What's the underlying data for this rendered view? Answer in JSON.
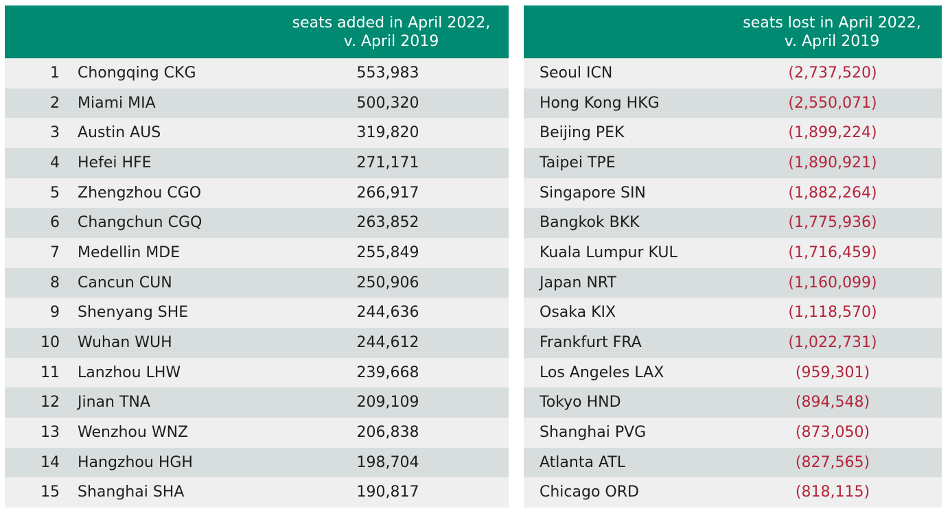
{
  "added": {
    "header_line1": "seats added in April 2022,",
    "header_line2": "v. April 2019",
    "rows": [
      {
        "rank": "1",
        "airport": "Chongqing CKG",
        "value": "553,983"
      },
      {
        "rank": "2",
        "airport": "Miami MIA",
        "value": "500,320"
      },
      {
        "rank": "3",
        "airport": "Austin AUS",
        "value": "319,820"
      },
      {
        "rank": "4",
        "airport": "Hefei HFE",
        "value": "271,171"
      },
      {
        "rank": "5",
        "airport": "Zhengzhou CGO",
        "value": "266,917"
      },
      {
        "rank": "6",
        "airport": "Changchun CGQ",
        "value": "263,852"
      },
      {
        "rank": "7",
        "airport": "Medellin MDE",
        "value": "255,849"
      },
      {
        "rank": "8",
        "airport": "Cancun CUN",
        "value": "250,906"
      },
      {
        "rank": "9",
        "airport": "Shenyang SHE",
        "value": "244,636"
      },
      {
        "rank": "10",
        "airport": "Wuhan WUH",
        "value": "244,612"
      },
      {
        "rank": "11",
        "airport": "Lanzhou LHW",
        "value": "239,668"
      },
      {
        "rank": "12",
        "airport": "Jinan TNA",
        "value": "209,109"
      },
      {
        "rank": "13",
        "airport": "Wenzhou WNZ",
        "value": "206,838"
      },
      {
        "rank": "14",
        "airport": "Hangzhou HGH",
        "value": "198,704"
      },
      {
        "rank": "15",
        "airport": "Shanghai SHA",
        "value": "190,817"
      }
    ]
  },
  "lost": {
    "header_line1": "seats lost in April 2022,",
    "header_line2": "v. April 2019",
    "rows": [
      {
        "airport": "Seoul ICN",
        "value": "(2,737,520)"
      },
      {
        "airport": "Hong Kong HKG",
        "value": "(2,550,071)"
      },
      {
        "airport": "Beijing PEK",
        "value": "(1,899,224)"
      },
      {
        "airport": "Taipei TPE",
        "value": "(1,890,921)"
      },
      {
        "airport": "Singapore SIN",
        "value": "(1,882,264)"
      },
      {
        "airport": "Bangkok BKK",
        "value": "(1,775,936)"
      },
      {
        "airport": "Kuala Lumpur KUL",
        "value": "(1,716,459)"
      },
      {
        "airport": "Japan NRT",
        "value": "(1,160,099)"
      },
      {
        "airport": "Osaka KIX",
        "value": "(1,118,570)"
      },
      {
        "airport": "Frankfurt FRA",
        "value": "(1,022,731)"
      },
      {
        "airport": "Los Angeles LAX",
        "value": "(959,301)"
      },
      {
        "airport": "Tokyo HND",
        "value": "(894,548)"
      },
      {
        "airport": "Shanghai PVG",
        "value": "(873,050)"
      },
      {
        "airport": "Atlanta ATL",
        "value": "(827,565)"
      },
      {
        "airport": "Chicago ORD",
        "value": "(818,115)"
      }
    ]
  },
  "colors": {
    "header_bg": "#008a72",
    "row_light": "#efefef",
    "row_dark": "#d8dede",
    "negative_value": "#b5243a"
  }
}
